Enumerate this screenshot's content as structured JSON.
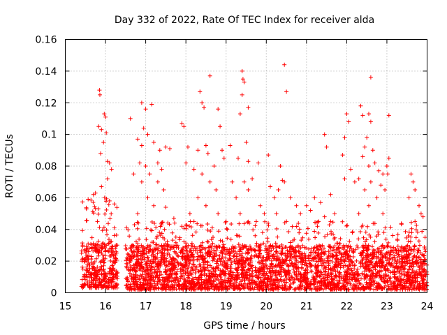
{
  "chart_data": {
    "type": "scatter",
    "title": "Day 332 of 2022, Rate Of TEC Index for receiver alda",
    "xlabel": "GPS time / hours",
    "ylabel": "ROTI / TECUs",
    "xlim": [
      15,
      24
    ],
    "ylim": [
      0,
      0.16
    ],
    "xticks": [
      15,
      16,
      17,
      18,
      19,
      20,
      21,
      22,
      23,
      24
    ],
    "yticks": [
      0,
      0.02,
      0.04,
      0.06,
      0.08,
      0.1,
      0.12,
      0.14,
      0.16
    ],
    "xtick_labels": [
      "15",
      "16",
      "17",
      "18",
      "19",
      "20",
      "21",
      "22",
      "23",
      "24"
    ],
    "ytick_labels": [
      "0",
      "0.02",
      "0.04",
      "0.06",
      "0.08",
      "0.1",
      "0.12",
      "0.14",
      "0.16"
    ],
    "grid": true,
    "marker": "plus",
    "color": "#ff0000",
    "data_gap": [
      16.3,
      16.5
    ],
    "series": [
      {
        "points": [
          [
            15.85,
            0.128
          ],
          [
            15.86,
            0.125
          ],
          [
            15.83,
            0.105
          ],
          [
            15.9,
            0.103
          ],
          [
            15.97,
            0.113
          ],
          [
            16.0,
            0.111
          ],
          [
            16.02,
            0.101
          ],
          [
            15.95,
            0.095
          ],
          [
            15.88,
            0.088
          ],
          [
            16.05,
            0.083
          ],
          [
            16.1,
            0.082
          ],
          [
            16.15,
            0.078
          ],
          [
            16.05,
            0.072
          ],
          [
            15.7,
            0.062
          ],
          [
            15.75,
            0.063
          ],
          [
            15.9,
            0.067
          ],
          [
            16.1,
            0.058
          ],
          [
            15.8,
            0.045
          ],
          [
            16.62,
            0.11
          ],
          [
            16.9,
            0.12
          ],
          [
            17.0,
            0.116
          ],
          [
            17.15,
            0.119
          ],
          [
            16.95,
            0.104
          ],
          [
            17.05,
            0.1
          ],
          [
            16.8,
            0.097
          ],
          [
            16.9,
            0.093
          ],
          [
            17.2,
            0.095
          ],
          [
            17.35,
            0.09
          ],
          [
            17.5,
            0.092
          ],
          [
            17.6,
            0.091
          ],
          [
            16.85,
            0.082
          ],
          [
            17.0,
            0.08
          ],
          [
            17.3,
            0.082
          ],
          [
            17.4,
            0.078
          ],
          [
            16.7,
            0.075
          ],
          [
            16.9,
            0.07
          ],
          [
            17.1,
            0.075
          ],
          [
            17.3,
            0.07
          ],
          [
            17.45,
            0.065
          ],
          [
            17.05,
            0.06
          ],
          [
            17.2,
            0.055
          ],
          [
            17.5,
            0.054
          ],
          [
            16.8,
            0.05
          ],
          [
            17.7,
            0.047
          ],
          [
            17.9,
            0.042
          ],
          [
            17.9,
            0.107
          ],
          [
            17.95,
            0.105
          ],
          [
            18.35,
            0.127
          ],
          [
            18.4,
            0.12
          ],
          [
            18.45,
            0.117
          ],
          [
            18.6,
            0.137
          ],
          [
            18.05,
            0.092
          ],
          [
            18.3,
            0.09
          ],
          [
            18.5,
            0.093
          ],
          [
            18.55,
            0.088
          ],
          [
            18.0,
            0.082
          ],
          [
            18.2,
            0.078
          ],
          [
            18.4,
            0.075
          ],
          [
            18.7,
            0.08
          ],
          [
            18.8,
            0.116
          ],
          [
            18.85,
            0.105
          ],
          [
            18.9,
            0.09
          ],
          [
            18.95,
            0.085
          ],
          [
            18.6,
            0.07
          ],
          [
            18.75,
            0.065
          ],
          [
            18.3,
            0.06
          ],
          [
            18.5,
            0.055
          ],
          [
            18.1,
            0.05
          ],
          [
            18.8,
            0.05
          ],
          [
            18.2,
            0.045
          ],
          [
            19.4,
            0.14
          ],
          [
            19.42,
            0.135
          ],
          [
            19.45,
            0.133
          ],
          [
            19.4,
            0.125
          ],
          [
            19.55,
            0.117
          ],
          [
            19.35,
            0.113
          ],
          [
            19.5,
            0.095
          ],
          [
            19.1,
            0.093
          ],
          [
            19.3,
            0.085
          ],
          [
            19.55,
            0.083
          ],
          [
            19.8,
            0.082
          ],
          [
            19.15,
            0.07
          ],
          [
            19.45,
            0.07
          ],
          [
            19.65,
            0.072
          ],
          [
            19.25,
            0.06
          ],
          [
            19.55,
            0.065
          ],
          [
            19.85,
            0.055
          ],
          [
            19.35,
            0.05
          ],
          [
            19.75,
            0.045
          ],
          [
            19.0,
            0.045
          ],
          [
            19.95,
            0.05
          ],
          [
            20.45,
            0.144
          ],
          [
            20.5,
            0.127
          ],
          [
            20.05,
            0.087
          ],
          [
            20.35,
            0.08
          ],
          [
            20.4,
            0.071
          ],
          [
            20.45,
            0.07
          ],
          [
            20.1,
            0.067
          ],
          [
            20.2,
            0.06
          ],
          [
            20.3,
            0.065
          ],
          [
            20.6,
            0.06
          ],
          [
            20.75,
            0.055
          ],
          [
            20.25,
            0.05
          ],
          [
            20.5,
            0.045
          ],
          [
            20.85,
            0.05
          ],
          [
            21.0,
            0.055
          ],
          [
            21.2,
            0.06
          ],
          [
            21.35,
            0.057
          ],
          [
            21.45,
            0.1
          ],
          [
            21.5,
            0.092
          ],
          [
            21.6,
            0.062
          ],
          [
            21.1,
            0.052
          ],
          [
            21.45,
            0.048
          ],
          [
            21.3,
            0.045
          ],
          [
            21.7,
            0.05
          ],
          [
            21.6,
            0.045
          ],
          [
            21.95,
            0.098
          ],
          [
            22.0,
            0.113
          ],
          [
            22.05,
            0.108
          ],
          [
            21.9,
            0.087
          ],
          [
            22.1,
            0.078
          ],
          [
            21.95,
            0.072
          ],
          [
            22.2,
            0.07
          ],
          [
            22.35,
            0.118
          ],
          [
            22.4,
            0.112
          ],
          [
            22.6,
            0.136
          ],
          [
            22.55,
            0.113
          ],
          [
            22.6,
            0.108
          ],
          [
            22.5,
            0.098
          ],
          [
            22.45,
            0.092
          ],
          [
            22.65,
            0.09
          ],
          [
            22.4,
            0.086
          ],
          [
            22.55,
            0.08
          ],
          [
            22.7,
            0.082
          ],
          [
            22.8,
            0.077
          ],
          [
            22.9,
            0.075
          ],
          [
            23.0,
            0.08
          ],
          [
            22.3,
            0.072
          ],
          [
            22.6,
            0.07
          ],
          [
            22.85,
            0.068
          ],
          [
            22.95,
            0.065
          ],
          [
            22.45,
            0.065
          ],
          [
            22.75,
            0.06
          ],
          [
            22.55,
            0.055
          ],
          [
            22.3,
            0.05
          ],
          [
            22.9,
            0.05
          ],
          [
            23.05,
            0.112
          ],
          [
            23.05,
            0.085
          ],
          [
            23.02,
            0.075
          ],
          [
            23.6,
            0.075
          ],
          [
            23.65,
            0.07
          ],
          [
            23.7,
            0.065
          ],
          [
            23.55,
            0.06
          ],
          [
            23.8,
            0.055
          ],
          [
            23.85,
            0.05
          ],
          [
            23.9,
            0.048
          ],
          [
            23.7,
            0.045
          ],
          [
            23.95,
            0.035
          ]
        ]
      }
    ],
    "dense_band": [
      {
        "x": [
          15.4,
          16.3
        ],
        "ymin": 0.003,
        "ymax": 0.032
      },
      {
        "x": [
          16.5,
          24.0
        ],
        "ymin": 0.002,
        "ymax": 0.03
      }
    ],
    "upper_band": [
      {
        "x": [
          15.4,
          16.3
        ],
        "ymin": 0.02,
        "ymax": 0.06
      },
      {
        "x": [
          16.5,
          24.0
        ],
        "ymin": 0.015,
        "ymax": 0.045
      }
    ]
  }
}
